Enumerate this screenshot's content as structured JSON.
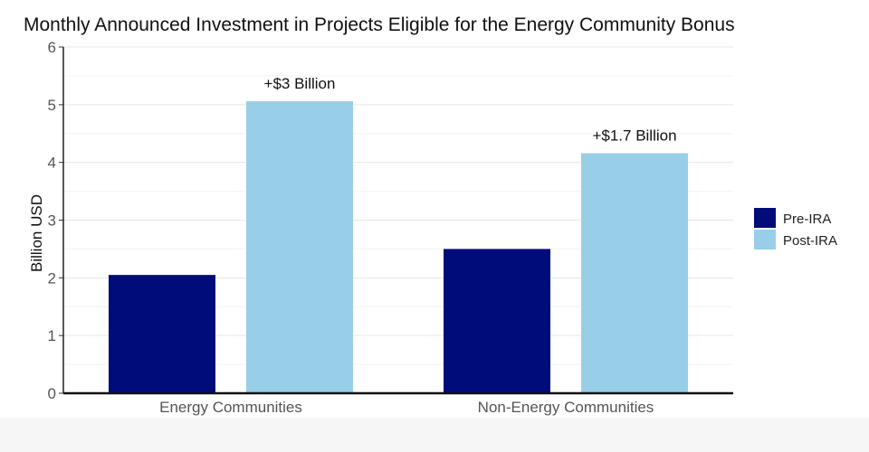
{
  "chart_data": {
    "type": "bar",
    "title": "Monthly Announced Investment in Projects Eligible for the Energy Community Bonus",
    "xlabel": "",
    "ylabel": "Billion USD",
    "ylim": [
      0,
      6
    ],
    "yticks": [
      0,
      1,
      2,
      3,
      4,
      5,
      6
    ],
    "categories": [
      "Energy Communities",
      "Non-Energy Communities"
    ],
    "series": [
      {
        "name": "Pre-IRA",
        "color": "#000c7a",
        "values": [
          2.05,
          2.5
        ]
      },
      {
        "name": "Post-IRA",
        "color": "#99cee8",
        "values": [
          5.06,
          4.16
        ]
      }
    ],
    "annotations": [
      "+$3 Billion",
      "+$1.7 Billion"
    ],
    "grid": true,
    "legend": "right"
  }
}
